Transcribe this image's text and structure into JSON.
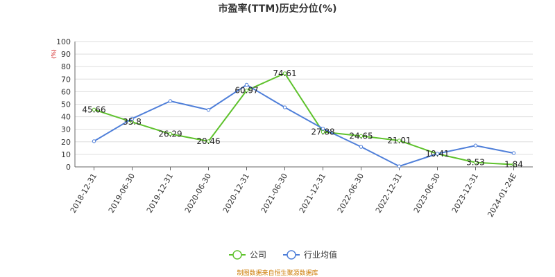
{
  "chart_data": {
    "type": "line",
    "title": "市盈率(TTM)历史分位(%)",
    "ylabel": "(%)",
    "xlabel": "",
    "ylim": [
      0,
      100
    ],
    "yticks": [
      0,
      10,
      20,
      30,
      40,
      50,
      60,
      70,
      80,
      90,
      100
    ],
    "grid": true,
    "legend_position": "bottom",
    "categories": [
      "2018-12-31",
      "2019-06-30",
      "2019-12-31",
      "2020-06-30",
      "2020-12-31",
      "2021-06-30",
      "2021-12-31",
      "2022-06-30",
      "2022-12-31",
      "2023-06-30",
      "2023-12-31",
      "2024-01-24E"
    ],
    "series": [
      {
        "name": "公司",
        "color": "#5ec22c",
        "values": [
          45.66,
          35.8,
          26.29,
          20.46,
          60.97,
          74.61,
          27.88,
          24.65,
          21.01,
          10.41,
          3.53,
          1.84
        ],
        "labels": [
          "45.66",
          "35.8",
          "26.29",
          "20.46",
          "60.97",
          "74.61",
          "27.88",
          "24.65",
          "21.01",
          "10.41",
          "3.53",
          "1.84"
        ]
      },
      {
        "name": "行业均值",
        "color": "#4f7fd9",
        "values": [
          20.5,
          38.5,
          52.5,
          45.5,
          65.5,
          47.5,
          30.5,
          16,
          0.5,
          10.5,
          17,
          11
        ]
      }
    ],
    "source": "制图数据来自恒生聚源数据库",
    "colors": {
      "unit": "#cc0000",
      "source": "#cc7a00",
      "grid": "#dddddd",
      "axis": "#666666"
    }
  }
}
